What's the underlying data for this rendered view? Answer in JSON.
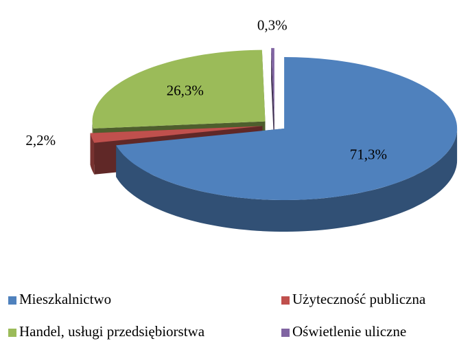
{
  "chart_data": {
    "type": "pie3d",
    "categories": [
      "Mieszkalnictwo",
      "Użyteczność publiczna",
      "Handel, usługi przedsiębiorstwa",
      "Oświetlenie uliczne"
    ],
    "values": [
      71.3,
      2.2,
      26.3,
      0.3
    ],
    "value_labels": [
      "71,3%",
      "2,2%",
      "26,3%",
      "0,3%"
    ],
    "colors": [
      "#4f81bd",
      "#c0504d",
      "#9bbb59",
      "#8064a2"
    ],
    "legend": "bottom"
  }
}
